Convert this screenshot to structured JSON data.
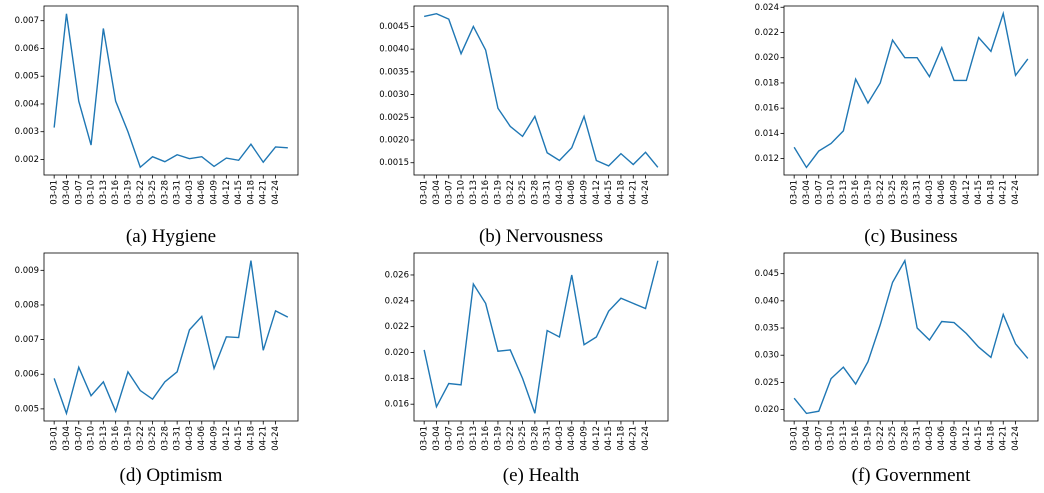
{
  "chart_data": [
    {
      "type": "line",
      "title": "(a) Hygiene",
      "color": "#1f77b4",
      "categories": [
        "03-01",
        "03-04",
        "03-07",
        "03-10",
        "03-13",
        "03-16",
        "03-19",
        "03-22",
        "03-25",
        "03-28",
        "03-31",
        "04-03",
        "04-06",
        "04-09",
        "04-12",
        "04-15",
        "04-18",
        "04-21",
        "04-24",
        null
      ],
      "values": [
        0.00315,
        0.00725,
        0.0041,
        0.00252,
        0.00672,
        0.0041,
        0.003,
        0.00172,
        0.0021,
        0.00192,
        0.00217,
        0.00203,
        0.0021,
        0.00175,
        0.00205,
        0.00197,
        0.00255,
        0.0019,
        0.00245,
        0.00242
      ],
      "ylim": [
        0.00144,
        0.00753
      ],
      "yticks": [
        0.002,
        0.003,
        0.004,
        0.005,
        0.006,
        0.007
      ]
    },
    {
      "type": "line",
      "title": "(b) Nervousness",
      "color": "#1f77b4",
      "categories": [
        "03-01",
        "03-04",
        "03-07",
        "03-10",
        "03-13",
        "03-16",
        "03-19",
        "03-22",
        "03-25",
        "03-28",
        "03-31",
        "04-03",
        "04-06",
        "04-09",
        "04-12",
        "04-15",
        "04-18",
        "04-21",
        "04-24",
        null
      ],
      "values": [
        0.00472,
        0.00478,
        0.00466,
        0.0039,
        0.0045,
        0.00398,
        0.0027,
        0.0023,
        0.00208,
        0.00252,
        0.00172,
        0.00155,
        0.00183,
        0.00252,
        0.00155,
        0.00143,
        0.0017,
        0.00146,
        0.00173,
        0.0014
      ],
      "ylim": [
        0.00123,
        0.00495
      ],
      "yticks": [
        0.0015,
        {
          "value": 0.002,
          "label": "0.0020"
        },
        0.0025,
        {
          "value": 0.003,
          "label": "0.0030"
        },
        0.0035,
        {
          "value": 0.004,
          "label": "0.0040"
        },
        0.0045
      ]
    },
    {
      "type": "line",
      "title": "(c) Business",
      "color": "#1f77b4",
      "categories": [
        "03-01",
        "03-04",
        "03-07",
        "03-10",
        "03-13",
        "03-16",
        "03-19",
        "03-22",
        "03-25",
        "03-28",
        "03-31",
        "04-03",
        "04-06",
        "04-09",
        "04-12",
        "04-15",
        "04-18",
        "04-21",
        "04-24",
        null
      ],
      "values": [
        0.0129,
        0.0113,
        0.0126,
        0.0132,
        0.0142,
        0.0183,
        0.0164,
        0.018,
        0.0214,
        0.02,
        0.02,
        0.0185,
        0.0208,
        0.0182,
        0.0182,
        0.0216,
        0.0205,
        0.0235,
        0.0186,
        0.0199
      ],
      "ylim": [
        0.0107,
        0.0241
      ],
      "yticks": [
        0.012,
        0.014,
        0.016,
        0.018,
        {
          "value": 0.02,
          "label": "0.020"
        },
        0.022,
        0.024
      ]
    },
    {
      "type": "line",
      "title": "(d) Optimism",
      "color": "#1f77b4",
      "categories": [
        "03-01",
        "03-04",
        "03-07",
        "03-10",
        "03-13",
        "03-16",
        "03-19",
        "03-22",
        "03-25",
        "03-28",
        "03-31",
        "04-03",
        "04-06",
        "04-09",
        "04-12",
        "04-15",
        "04-18",
        "04-21",
        "04-24",
        null
      ],
      "values": [
        0.00588,
        0.00487,
        0.0062,
        0.00538,
        0.00578,
        0.00493,
        0.00607,
        0.00553,
        0.00528,
        0.00578,
        0.00607,
        0.00728,
        0.00767,
        0.00617,
        0.00708,
        0.00706,
        0.00928,
        0.00669,
        0.00783,
        0.00765
      ],
      "ylim": [
        0.00465,
        0.0095
      ],
      "yticks": [
        0.005,
        0.006,
        0.007,
        0.008,
        0.009
      ]
    },
    {
      "type": "line",
      "title": "(e) Health",
      "color": "#1f77b4",
      "categories": [
        "03-01",
        "03-04",
        "03-07",
        "03-10",
        "03-13",
        "03-16",
        "03-19",
        "03-22",
        "03-25",
        "03-28",
        "03-31",
        "04-03",
        "04-06",
        "04-09",
        "04-12",
        "04-15",
        "04-18",
        "04-21",
        "04-24",
        null
      ],
      "values": [
        0.0202,
        0.0158,
        0.0176,
        0.0175,
        0.0253,
        0.0238,
        0.0201,
        0.0202,
        0.018,
        0.0153,
        0.0217,
        0.0212,
        0.026,
        0.0206,
        0.0212,
        0.0232,
        0.0242,
        0.0238,
        0.0234,
        0.0271
      ],
      "ylim": [
        0.0147,
        0.0277
      ],
      "yticks": [
        0.016,
        0.018,
        {
          "value": 0.02,
          "label": "0.020"
        },
        0.022,
        0.024,
        0.026
      ]
    },
    {
      "type": "line",
      "title": "(f) Government",
      "color": "#1f77b4",
      "categories": [
        "03-01",
        "03-04",
        "03-07",
        "03-10",
        "03-13",
        "03-16",
        "03-19",
        "03-22",
        "03-25",
        "03-28",
        "03-31",
        "04-03",
        "04-06",
        "04-09",
        "04-12",
        "04-15",
        "04-18",
        "04-21",
        "04-24",
        null
      ],
      "values": [
        0.0221,
        0.0193,
        0.0197,
        0.0257,
        0.0278,
        0.0247,
        0.0288,
        0.0356,
        0.0434,
        0.0474,
        0.035,
        0.0328,
        0.0362,
        0.036,
        0.034,
        0.0315,
        0.0296,
        0.0375,
        0.0321,
        0.0294
      ],
      "ylim": [
        0.0179,
        0.0488
      ],
      "yticks": [
        {
          "value": 0.02,
          "label": "0.020"
        },
        0.025,
        {
          "value": 0.03,
          "label": "0.030"
        },
        0.035,
        {
          "value": 0.04,
          "label": "0.040"
        },
        0.045
      ]
    }
  ]
}
